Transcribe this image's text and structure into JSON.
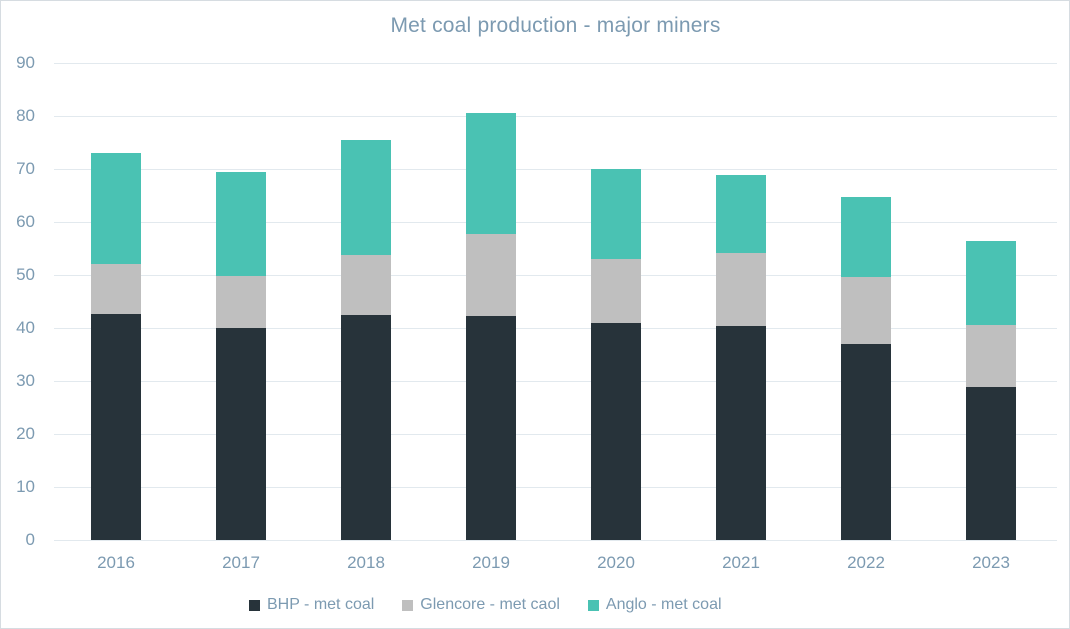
{
  "title": "Met coal production - major miners",
  "colors": {
    "background": "#ffffff",
    "border": "#d6dce1",
    "gridline": "#e2e9ee",
    "text": "#7c9ab1"
  },
  "chart_data": {
    "type": "bar",
    "stacked": true,
    "title": "Met coal production - major miners",
    "xlabel": "",
    "ylabel": "",
    "categories": [
      "2016",
      "2017",
      "2018",
      "2019",
      "2020",
      "2021",
      "2022",
      "2023"
    ],
    "series": [
      {
        "name": "BHP - met coal",
        "color": "#27333a",
        "values": [
          42.7,
          40.0,
          42.5,
          42.3,
          41.0,
          40.4,
          37.0,
          28.9
        ]
      },
      {
        "name": "Glencore - met caol",
        "color": "#bfbfbf",
        "values": [
          9.4,
          9.8,
          11.3,
          15.4,
          12.0,
          13.8,
          12.7,
          11.6
        ]
      },
      {
        "name": "Anglo - met coal",
        "color": "#4ac2b3",
        "values": [
          21.0,
          19.7,
          21.7,
          22.9,
          17.0,
          14.7,
          15.0,
          16.0
        ]
      }
    ],
    "totals": [
      73.1,
      69.5,
      75.5,
      80.6,
      70.0,
      68.9,
      64.7,
      56.5
    ],
    "ylim": [
      0,
      90
    ],
    "yticks": [
      0,
      10,
      20,
      30,
      40,
      50,
      60,
      70,
      80,
      90
    ],
    "grid": true,
    "legend_position": "bottom"
  }
}
